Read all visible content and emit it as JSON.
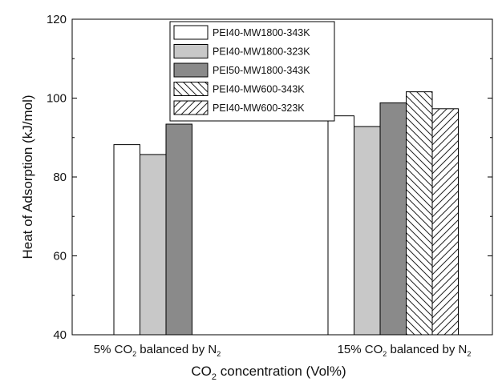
{
  "chart_data": {
    "type": "bar",
    "title": "",
    "xlabel": {
      "main": "CO",
      "sub": "2",
      "rest": " concentration (Vol%)"
    },
    "ylabel": "Heat of Adsorption (kJ/mol)",
    "ylim": [
      40,
      120
    ],
    "yticks": [
      "40",
      "60",
      "80",
      "100",
      "120"
    ],
    "grid": false,
    "legend_position": "top-center",
    "categories": [
      {
        "parts": [
          "5% CO",
          "2",
          " balanced by N",
          "2"
        ]
      },
      {
        "parts": [
          "15% CO",
          "2",
          " balanced by N",
          "2"
        ]
      }
    ],
    "series": [
      {
        "name": "PEI40-MW1800-343K",
        "fill": "#ffffff",
        "pattern": "none",
        "values": [
          88.2,
          95.5
        ]
      },
      {
        "name": "PEI40-MW1800-323K",
        "fill": "#c8c8c8",
        "pattern": "none",
        "values": [
          85.7,
          92.8
        ]
      },
      {
        "name": "PEI50-MW1800-343K",
        "fill": "#8a8a8a",
        "pattern": "none",
        "values": [
          93.4,
          98.8
        ]
      },
      {
        "name": "PEI40-MW600-343K",
        "fill": "#ffffff",
        "pattern": "backslash-hatch",
        "values": [
          null,
          101.6
        ]
      },
      {
        "name": "PEI40-MW600-323K",
        "fill": "#ffffff",
        "pattern": "slash-hatch",
        "values": [
          null,
          97.3
        ]
      }
    ]
  }
}
